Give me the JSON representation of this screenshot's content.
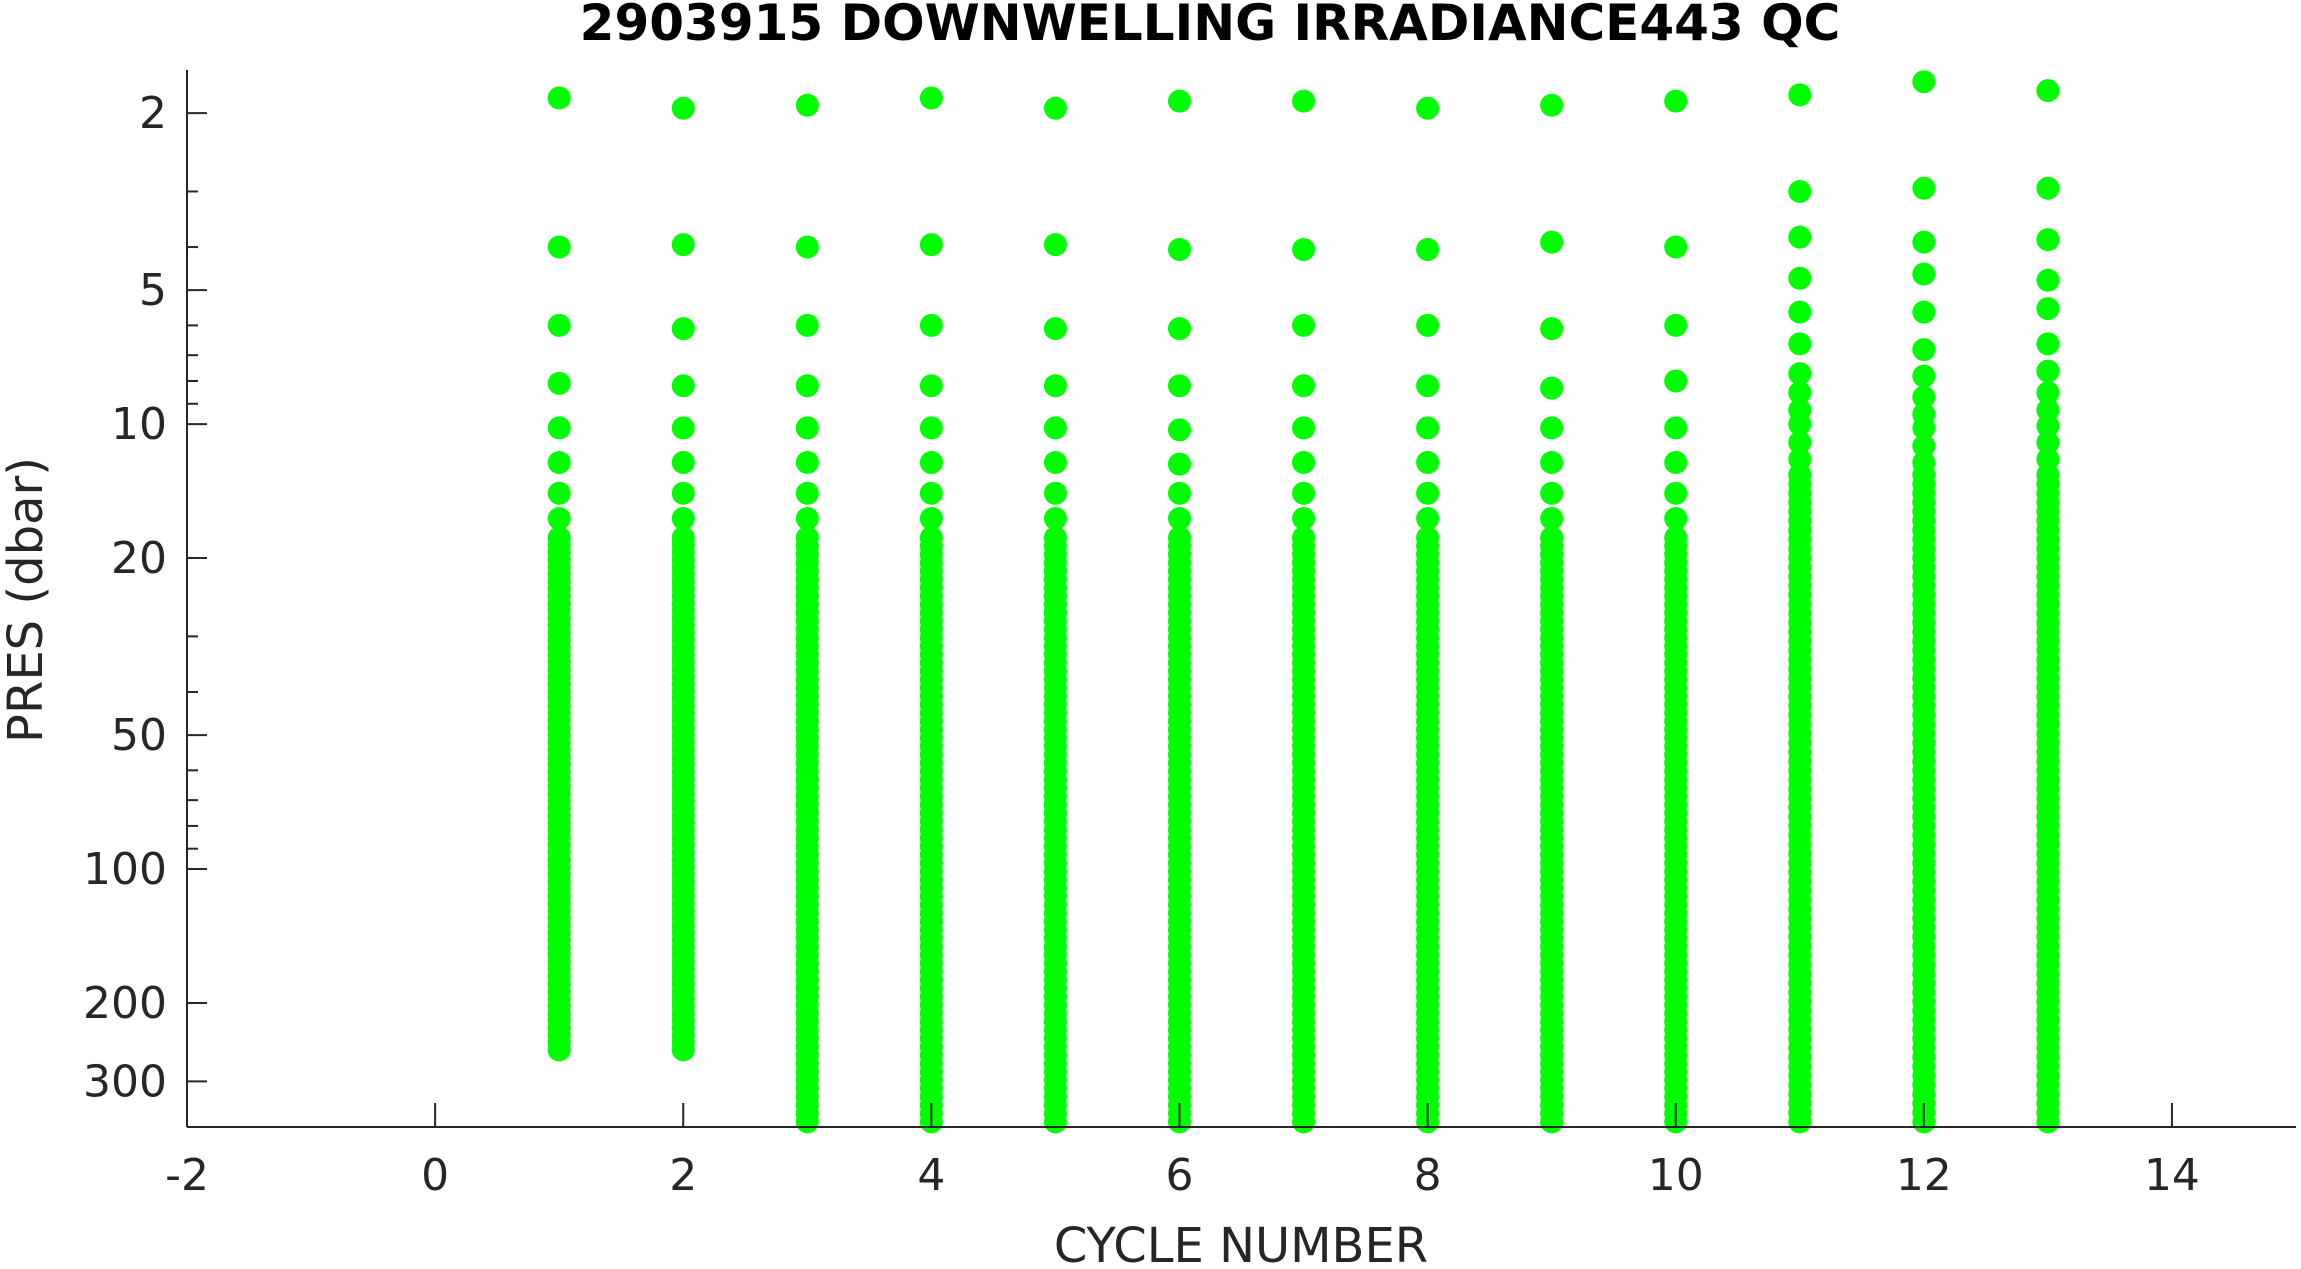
{
  "chart_data": {
    "type": "scatter",
    "title": "2903915  DOWNWELLING IRRADIANCE443 QC",
    "xlabel": "CYCLE NUMBER",
    "ylabel": "PRES (dbar)",
    "xlim": [
      -2,
      15
    ],
    "ylim": [
      1.6,
      380
    ],
    "yscale": "log",
    "yreverse": true,
    "grid": false,
    "marker_color": "#00ff00",
    "x_ticks": [
      -2,
      0,
      2,
      4,
      6,
      8,
      10,
      12,
      14
    ],
    "x_tick_labels": [
      "-2",
      "0",
      "2",
      "4",
      "6",
      "8",
      "10",
      "12",
      "14"
    ],
    "y_ticks": [
      2,
      5,
      10,
      20,
      50,
      100,
      200,
      300
    ],
    "y_tick_labels": [
      "2",
      "5",
      "10",
      "20",
      "50",
      "100",
      "200",
      "300"
    ],
    "y_minor_ticks": [
      3,
      4,
      6,
      7,
      8,
      9,
      30,
      40,
      60,
      70,
      80,
      90
    ],
    "series": [
      {
        "x": 1,
        "shallow": [
          1.85,
          4.0,
          6.0,
          8.1,
          10.2,
          12.2,
          14.3,
          16.3
        ],
        "dense_from": 18,
        "dense_to": 255
      },
      {
        "x": 2,
        "shallow": [
          1.95,
          3.95,
          6.1,
          8.2,
          10.2,
          12.2,
          14.3,
          16.3
        ],
        "dense_from": 18,
        "dense_to": 255
      },
      {
        "x": 3,
        "shallow": [
          1.92,
          4.0,
          6.0,
          8.2,
          10.2,
          12.2,
          14.3,
          16.3
        ],
        "dense_from": 18,
        "dense_to": 370
      },
      {
        "x": 4,
        "shallow": [
          1.85,
          3.95,
          6.0,
          8.2,
          10.2,
          12.2,
          14.3,
          16.3
        ],
        "dense_from": 18,
        "dense_to": 370
      },
      {
        "x": 5,
        "shallow": [
          1.95,
          3.95,
          6.1,
          8.2,
          10.2,
          12.2,
          14.3,
          16.3
        ],
        "dense_from": 18,
        "dense_to": 370
      },
      {
        "x": 6,
        "shallow": [
          1.88,
          4.05,
          6.1,
          8.2,
          10.3,
          12.3,
          14.3,
          16.3
        ],
        "dense_from": 18,
        "dense_to": 370
      },
      {
        "x": 7,
        "shallow": [
          1.88,
          4.05,
          6.0,
          8.2,
          10.2,
          12.2,
          14.3,
          16.3
        ],
        "dense_from": 18,
        "dense_to": 370
      },
      {
        "x": 8,
        "shallow": [
          1.95,
          4.05,
          6.0,
          8.2,
          10.2,
          12.2,
          14.3,
          16.3
        ],
        "dense_from": 18,
        "dense_to": 370
      },
      {
        "x": 9,
        "shallow": [
          1.92,
          3.9,
          6.1,
          8.3,
          10.2,
          12.2,
          14.3,
          16.3
        ],
        "dense_from": 18,
        "dense_to": 370
      },
      {
        "x": 10,
        "shallow": [
          1.88,
          4.0,
          6.0,
          8.0,
          10.2,
          12.2,
          14.3,
          16.3
        ],
        "dense_from": 18,
        "dense_to": 370
      },
      {
        "x": 11,
        "shallow": [
          1.82,
          3.0,
          3.8,
          4.7,
          5.6,
          6.6,
          7.7,
          8.5,
          9.3,
          10.0,
          11.0,
          12.0
        ],
        "dense_from": 13,
        "dense_to": 370
      },
      {
        "x": 12,
        "shallow": [
          1.7,
          2.95,
          3.9,
          4.6,
          5.6,
          6.8,
          7.8,
          8.7,
          9.5,
          10.2,
          11.2,
          12.2
        ],
        "dense_from": 13,
        "dense_to": 370
      },
      {
        "x": 13,
        "shallow": [
          1.78,
          2.95,
          3.85,
          4.75,
          5.5,
          6.6,
          7.6,
          8.5,
          9.3,
          10.1,
          11.0,
          12.0
        ],
        "dense_from": 13,
        "dense_to": 370
      }
    ]
  }
}
